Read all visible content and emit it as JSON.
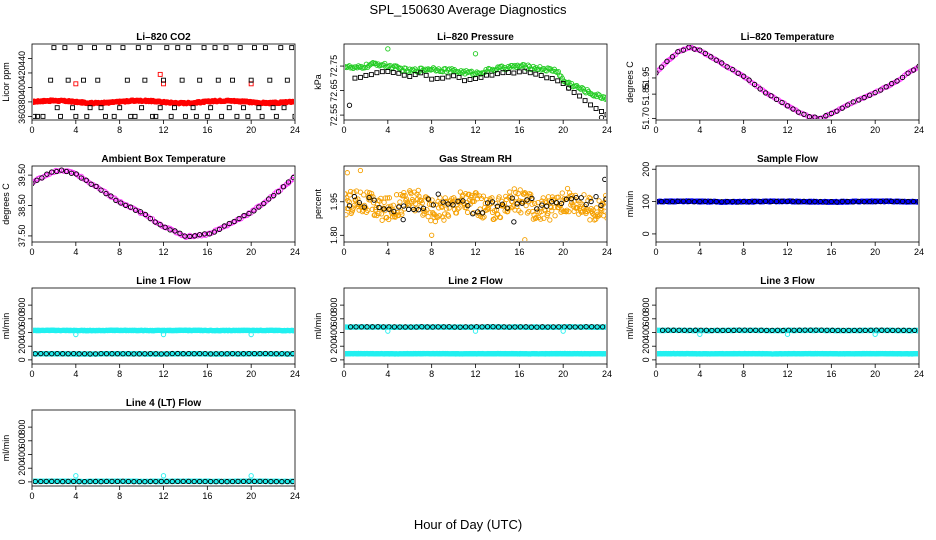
{
  "page": {
    "title": "SPL_150630  Average Diagnostics",
    "xlabel": "Hour of Day (UTC)"
  },
  "colors": {
    "black": "#000000",
    "red": "#ff0000",
    "green": "#22cc22",
    "magenta": "#ff33ff",
    "orange": "#f5a000",
    "blue": "#0000ff",
    "cyan": "#22f0f0"
  },
  "chart_data": [
    {
      "id": "co2",
      "type": "scatter",
      "title": "Li–820 CO2",
      "ylabel": "Licor ppm",
      "xlim": [
        0,
        24
      ],
      "ylim": [
        355,
        460
      ],
      "xticks": [
        0,
        4,
        8,
        12,
        16,
        20,
        24
      ],
      "yticks": [
        360,
        380,
        400,
        420,
        440
      ],
      "series": [
        {
          "kind": "band",
          "color": "red",
          "mark": "dot",
          "x0": 0,
          "x1": 24,
          "y": 380,
          "amp": 1.6,
          "jitter": 1.2,
          "step": 0.05,
          "freq": 0.8
        },
        {
          "kind": "points",
          "color": "red",
          "x": [
            4,
            11.7,
            12,
            20
          ],
          "y": [
            405,
            418,
            405,
            405
          ]
        },
        {
          "kind": "points",
          "color": "black",
          "x": [
            0.2,
            0.5,
            1.0,
            1.7,
            2.0,
            2.3,
            2.6,
            3.0,
            3.3,
            3.7,
            4.0,
            4.4,
            4.7,
            5.0,
            5.3,
            5.7,
            6.0,
            6.3,
            6.7,
            7.0,
            7.5,
            8.0,
            8.3,
            8.7,
            9.0,
            9.4,
            9.7,
            10.0,
            10.3,
            10.7,
            11.0,
            11.3,
            11.7,
            12.0,
            12.3,
            12.7,
            13.0,
            13.3,
            13.7,
            14.0,
            14.3,
            14.7,
            15.0,
            15.3,
            15.7,
            16.0,
            16.3,
            16.7,
            17.0,
            17.3,
            17.7,
            18.0,
            18.3,
            18.7,
            19.0,
            19.3,
            19.7,
            20.0,
            20.3,
            20.7,
            21.0,
            21.3,
            21.7,
            22.0,
            22.3,
            22.7,
            23.0,
            23.3,
            23.7,
            24.0
          ],
          "y": [
            360,
            360,
            360,
            410,
            455,
            372,
            360,
            455,
            410,
            372,
            360,
            455,
            410,
            360,
            372,
            455,
            410,
            372,
            360,
            455,
            360,
            372,
            455,
            410,
            360,
            360,
            455,
            372,
            410,
            455,
            360,
            360,
            372,
            410,
            455,
            360,
            372,
            455,
            410,
            360,
            455,
            372,
            360,
            410,
            455,
            360,
            372,
            455,
            410,
            360,
            455,
            372,
            410,
            360,
            455,
            372,
            360,
            410,
            455,
            372,
            360,
            455,
            410,
            372,
            360,
            455,
            372,
            410,
            455,
            360
          ]
        }
      ]
    },
    {
      "id": "pressure",
      "type": "scatter",
      "title": "Li–820 Pressure",
      "ylabel": "kPa",
      "xlim": [
        0,
        24
      ],
      "ylim": [
        72.53,
        72.84
      ],
      "xticks": [
        0,
        4,
        8,
        12,
        16,
        20,
        24
      ],
      "yticks": [
        72.55,
        72.65,
        72.75
      ],
      "series": [
        {
          "kind": "curve",
          "color": "green",
          "mark": "circle",
          "x": [
            0,
            1,
            2,
            3,
            4,
            6,
            8,
            10,
            12,
            14,
            16,
            18,
            19.5,
            20,
            21,
            22,
            23,
            24
          ],
          "y": [
            72.75,
            72.74,
            72.75,
            72.76,
            72.75,
            72.73,
            72.74,
            72.73,
            72.72,
            72.74,
            72.75,
            72.74,
            72.73,
            72.69,
            72.67,
            72.65,
            72.63,
            72.62
          ],
          "step": 0.12,
          "jitter": 0.008
        },
        {
          "kind": "curve",
          "color": "black",
          "mark": "square",
          "x": [
            1,
            2,
            3,
            4,
            5,
            6,
            7,
            8,
            9,
            10,
            11,
            12,
            13,
            14,
            15,
            16,
            17,
            18,
            19,
            20,
            21,
            22,
            23,
            24
          ],
          "y": [
            72.7,
            72.71,
            72.72,
            72.73,
            72.72,
            72.71,
            72.72,
            72.7,
            72.7,
            72.71,
            72.69,
            72.7,
            72.71,
            72.72,
            72.72,
            72.73,
            72.72,
            72.71,
            72.7,
            72.68,
            72.64,
            72.61,
            72.58,
            72.55
          ],
          "step": 0.5,
          "jitter": 0.004
        },
        {
          "kind": "points",
          "color": "green",
          "x": [
            4,
            12
          ],
          "y": [
            72.82,
            72.8
          ]
        },
        {
          "kind": "points",
          "color": "black",
          "x": [
            0.5,
            20.5,
            23.5
          ],
          "y": [
            72.59,
            72.66,
            72.54
          ]
        }
      ]
    },
    {
      "id": "licortemp",
      "type": "scatter",
      "title": "Li–820 Temperature",
      "ylabel": "degrees C",
      "xlim": [
        0,
        24
      ],
      "ylim": [
        51.69,
        52.16
      ],
      "xticks": [
        0,
        4,
        8,
        12,
        16,
        20,
        24
      ],
      "yticks": [
        51.7,
        51.85,
        51.95
      ],
      "series": [
        {
          "kind": "curve",
          "color": "magenta",
          "mark": "circle",
          "x": [
            0,
            1,
            2,
            3,
            4,
            6,
            8,
            10,
            12,
            13,
            14,
            15,
            16,
            18,
            20,
            22,
            23,
            24
          ],
          "y": [
            51.98,
            52.05,
            52.11,
            52.14,
            52.12,
            52.04,
            51.96,
            51.86,
            51.78,
            51.74,
            51.71,
            51.7,
            51.73,
            51.8,
            51.86,
            51.93,
            51.98,
            52.02
          ],
          "step": 0.18,
          "jitter": 0.003
        },
        {
          "kind": "curve",
          "color": "black",
          "mark": "circle",
          "x": [
            0,
            1,
            2,
            3,
            4,
            6,
            8,
            10,
            12,
            13,
            14,
            15,
            16,
            18,
            20,
            22,
            23,
            24
          ],
          "y": [
            51.98,
            52.05,
            52.11,
            52.14,
            52.12,
            52.04,
            51.96,
            51.86,
            51.78,
            51.74,
            51.71,
            51.7,
            51.73,
            51.8,
            51.86,
            51.93,
            51.98,
            52.02
          ],
          "step": 0.5,
          "jitter": 0.003
        }
      ]
    },
    {
      "id": "ambient",
      "type": "scatter",
      "title": "Ambient Box Temperature",
      "ylabel": "degrees C",
      "xlim": [
        0,
        24
      ],
      "ylim": [
        37.3,
        39.8
      ],
      "xticks": [
        0,
        4,
        8,
        12,
        16,
        20,
        24
      ],
      "yticks": [
        37.5,
        38.5,
        39.5
      ],
      "series": [
        {
          "kind": "curve",
          "color": "magenta",
          "mark": "circle",
          "x": [
            0,
            1,
            2,
            3,
            4,
            6,
            8,
            10,
            12,
            14,
            16,
            18,
            20,
            22,
            24
          ],
          "y": [
            39.25,
            39.45,
            39.62,
            39.65,
            39.55,
            39.08,
            38.62,
            38.25,
            37.82,
            37.48,
            37.55,
            37.88,
            38.28,
            38.82,
            39.45
          ],
          "step": 0.18,
          "jitter": 0.03
        },
        {
          "kind": "curve",
          "color": "black",
          "mark": "circle",
          "x": [
            0,
            1,
            2,
            3,
            4,
            6,
            8,
            10,
            12,
            14,
            16,
            18,
            20,
            22,
            24
          ],
          "y": [
            39.25,
            39.45,
            39.62,
            39.65,
            39.55,
            39.08,
            38.62,
            38.25,
            37.82,
            37.48,
            37.55,
            37.88,
            38.28,
            38.82,
            39.45
          ],
          "step": 0.45,
          "jitter": 0.03
        }
      ]
    },
    {
      "id": "rh",
      "type": "scatter",
      "title": "Gas Stream RH",
      "ylabel": "percent",
      "xlim": [
        0,
        24
      ],
      "ylim": [
        1.77,
        2.11
      ],
      "xticks": [
        0,
        4,
        8,
        12,
        16,
        20,
        24
      ],
      "yticks": [
        1.8,
        1.95
      ],
      "series": [
        {
          "kind": "band",
          "color": "orange",
          "mark": "circle",
          "x0": 0,
          "x1": 24,
          "y": 1.935,
          "amp": 0.02,
          "jitter": 0.055,
          "step": 0.06,
          "freq": 1.3
        },
        {
          "kind": "band",
          "color": "black",
          "mark": "circle",
          "x0": 0.5,
          "x1": 24,
          "y": 1.94,
          "amp": 0.015,
          "jitter": 0.03,
          "step": 0.45,
          "freq": 0.9
        },
        {
          "kind": "points",
          "color": "orange",
          "x": [
            0.3,
            1.5,
            8,
            16.5
          ],
          "y": [
            2.08,
            2.09,
            1.8,
            1.78
          ]
        },
        {
          "kind": "points",
          "color": "black",
          "x": [
            23.8,
            5.4,
            15.5
          ],
          "y": [
            2.05,
            1.87,
            1.86
          ]
        }
      ]
    },
    {
      "id": "sampleflow",
      "type": "scatter",
      "title": "Sample Flow",
      "ylabel": "ml/min",
      "xlim": [
        0,
        24
      ],
      "ylim": [
        -25,
        210
      ],
      "xticks": [
        0,
        4,
        8,
        12,
        16,
        20,
        24
      ],
      "yticks": [
        0,
        100,
        200
      ],
      "series": [
        {
          "kind": "band",
          "color": "blue",
          "mark": "circle",
          "x0": 0,
          "x1": 24,
          "y": 100,
          "amp": 0.8,
          "jitter": 1.5,
          "step": 0.06,
          "freq": 0.7
        },
        {
          "kind": "band",
          "color": "black",
          "mark": "circle",
          "x0": 0,
          "x1": 24,
          "y": 100,
          "amp": 0.5,
          "jitter": 1.0,
          "step": 0.5,
          "freq": 0.7
        }
      ]
    },
    {
      "id": "line1",
      "type": "scatter",
      "title": "Line 1 Flow",
      "ylabel": "ml/min",
      "xlim": [
        0,
        24
      ],
      "ylim": [
        -60,
        1050
      ],
      "xticks": [
        0,
        4,
        8,
        12,
        16,
        20,
        24
      ],
      "yticks": [
        0,
        200,
        400,
        600,
        800
      ],
      "series": [
        {
          "kind": "band",
          "color": "cyan",
          "mark": "circle",
          "x0": 0,
          "x1": 24,
          "y": 430,
          "amp": 1,
          "jitter": 3,
          "step": 0.06,
          "freq": 1
        },
        {
          "kind": "band",
          "color": "cyan",
          "mark": "circle",
          "x0": 0,
          "x1": 24,
          "y": 88,
          "amp": 1,
          "jitter": 3,
          "step": 0.06,
          "freq": 1
        },
        {
          "kind": "band",
          "color": "black",
          "mark": "circle",
          "x0": 0.3,
          "x1": 24,
          "y": 90,
          "amp": 1,
          "jitter": 2,
          "step": 0.5,
          "freq": 1
        },
        {
          "kind": "points",
          "color": "cyan",
          "x": [
            4,
            12,
            20
          ],
          "y": [
            370,
            370,
            370
          ]
        }
      ]
    },
    {
      "id": "line2",
      "type": "scatter",
      "title": "Line 2 Flow",
      "ylabel": "ml/min",
      "xlim": [
        0,
        24
      ],
      "ylim": [
        -60,
        1050
      ],
      "xticks": [
        0,
        4,
        8,
        12,
        16,
        20,
        24
      ],
      "yticks": [
        0,
        200,
        400,
        600,
        800
      ],
      "series": [
        {
          "kind": "band",
          "color": "cyan",
          "mark": "circle",
          "x0": 0,
          "x1": 24,
          "y": 480,
          "amp": 1,
          "jitter": 3,
          "step": 0.06,
          "freq": 1
        },
        {
          "kind": "band",
          "color": "cyan",
          "mark": "circle",
          "x0": 0,
          "x1": 24,
          "y": 90,
          "amp": 1,
          "jitter": 3,
          "step": 0.06,
          "freq": 1
        },
        {
          "kind": "band",
          "color": "black",
          "mark": "circle",
          "x0": 0.6,
          "x1": 24,
          "y": 482,
          "amp": 1,
          "jitter": 2,
          "step": 0.5,
          "freq": 1
        },
        {
          "kind": "points",
          "color": "cyan",
          "x": [
            4,
            12,
            20
          ],
          "y": [
            420,
            420,
            420
          ]
        }
      ]
    },
    {
      "id": "line3",
      "type": "scatter",
      "title": "Line 3 Flow",
      "ylabel": "ml/min",
      "xlim": [
        0,
        24
      ],
      "ylim": [
        -60,
        1050
      ],
      "xticks": [
        0,
        4,
        8,
        12,
        16,
        20,
        24
      ],
      "yticks": [
        0,
        200,
        400,
        600,
        800
      ],
      "series": [
        {
          "kind": "band",
          "color": "cyan",
          "mark": "circle",
          "x0": 0,
          "x1": 24,
          "y": 430,
          "amp": 1,
          "jitter": 3,
          "step": 0.06,
          "freq": 1
        },
        {
          "kind": "band",
          "color": "cyan",
          "mark": "circle",
          "x0": 0,
          "x1": 24,
          "y": 90,
          "amp": 1,
          "jitter": 3,
          "step": 0.06,
          "freq": 1
        },
        {
          "kind": "band",
          "color": "black",
          "mark": "circle",
          "x0": 0.6,
          "x1": 24,
          "y": 432,
          "amp": 1,
          "jitter": 2,
          "step": 0.5,
          "freq": 1
        },
        {
          "kind": "points",
          "color": "cyan",
          "x": [
            4,
            12,
            20
          ],
          "y": [
            375,
            375,
            375
          ]
        }
      ]
    },
    {
      "id": "line4",
      "type": "scatter",
      "title": "Line 4 (LT) Flow",
      "ylabel": "ml/min",
      "xlim": [
        0,
        24
      ],
      "ylim": [
        -60,
        1050
      ],
      "xticks": [
        0,
        4,
        8,
        12,
        16,
        20,
        24
      ],
      "yticks": [
        0,
        200,
        400,
        600,
        800
      ],
      "series": [
        {
          "kind": "band",
          "color": "cyan",
          "mark": "circle",
          "x0": 0,
          "x1": 24,
          "y": 8,
          "amp": 1,
          "jitter": 3,
          "step": 0.06,
          "freq": 1
        },
        {
          "kind": "band",
          "color": "black",
          "mark": "circle",
          "x0": 0.3,
          "x1": 24,
          "y": 6,
          "amp": 1,
          "jitter": 2,
          "step": 0.5,
          "freq": 1
        },
        {
          "kind": "points",
          "color": "cyan",
          "x": [
            4,
            12,
            20
          ],
          "y": [
            90,
            90,
            90
          ]
        }
      ]
    }
  ]
}
